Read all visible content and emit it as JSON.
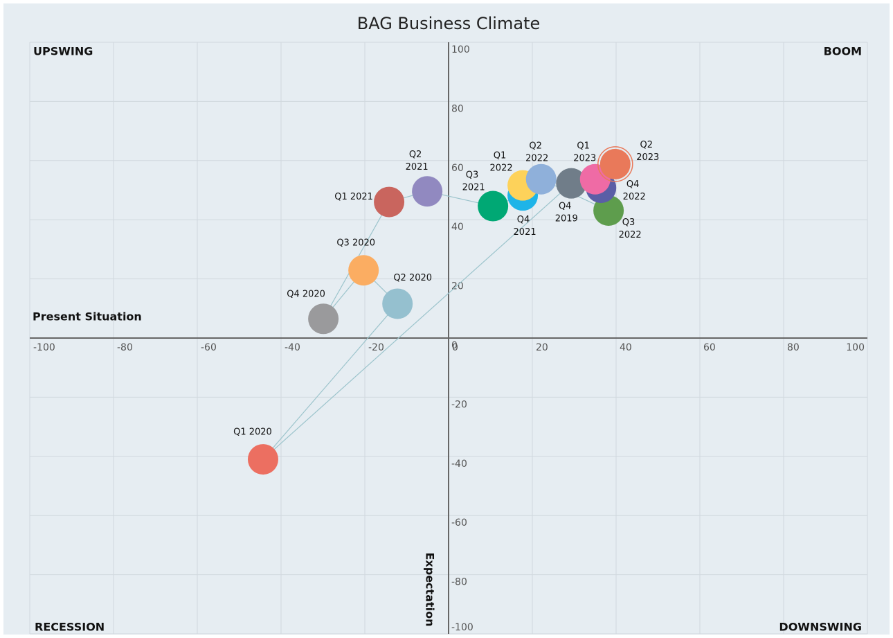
{
  "chart_data": {
    "type": "scatter",
    "title": "BAG Business Climate",
    "x_label": "Present Situation",
    "y_label": "Expectation",
    "quadrants": {
      "top_left": "UPSWING",
      "top_right": "BOOM",
      "bottom_left": "RECESSION",
      "bottom_right": "DOWNSWING"
    },
    "xlim": [
      -100,
      100
    ],
    "ylim": [
      -100,
      100
    ],
    "xticks": [
      -100,
      -80,
      -60,
      -40,
      -20,
      0,
      20,
      40,
      60,
      80,
      100
    ],
    "yticks": [
      -100,
      -80,
      -60,
      -40,
      -20,
      0,
      20,
      40,
      60,
      80,
      100
    ],
    "grid": true,
    "connector_color": "#9cc4cc",
    "points": [
      {
        "label": "Q4 2019",
        "x": 29.3,
        "y": 52.3,
        "color": "#707d89"
      },
      {
        "label": "Q1 2020",
        "x": -44.3,
        "y": -41,
        "color": "#ec6f61"
      },
      {
        "label": "Q2 2020",
        "x": -12.2,
        "y": 11.6,
        "color": "#95c0cf"
      },
      {
        "label": "Q3 2020",
        "x": -20.3,
        "y": 22.9,
        "color": "#fbad62"
      },
      {
        "label": "Q4 2020",
        "x": -29.9,
        "y": 6.5,
        "color": "#9a9a9c"
      },
      {
        "label": "Q1 2021",
        "x": -14.2,
        "y": 46,
        "color": "#c9655e"
      },
      {
        "label": "Q2 2021",
        "x": -5.1,
        "y": 49.6,
        "color": "#9189c0"
      },
      {
        "label": "Q3 2021",
        "x": 10.6,
        "y": 44.6,
        "color": "#00a874"
      },
      {
        "label": "Q4 2021",
        "x": 17.7,
        "y": 48.2,
        "color": "#1eb4e8"
      },
      {
        "label": "Q1 2022",
        "x": 17.7,
        "y": 51.6,
        "color": "#fdd25a"
      },
      {
        "label": "Q2 2022",
        "x": 22.1,
        "y": 53.7,
        "color": "#8fb0da"
      },
      {
        "label": "Q3 2022",
        "x": 38.2,
        "y": 43.1,
        "color": "#5e9d4d"
      },
      {
        "label": "Q4 2022",
        "x": 36.4,
        "y": 50.8,
        "color": "#5a5ea6"
      },
      {
        "label": "Q1 2023",
        "x": 35,
        "y": 53.7,
        "color": "#ef6ba5"
      },
      {
        "label": "Q2 2023",
        "x": 39.8,
        "y": 58.8,
        "color": "#e9795a"
      }
    ]
  }
}
